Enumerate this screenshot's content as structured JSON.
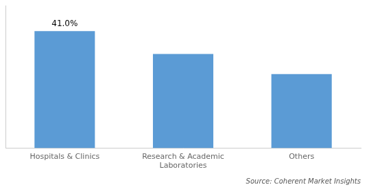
{
  "chart_data": {
    "type": "bar",
    "categories": [
      "Hospitals & Clinics",
      "Research & Academic\nLaboratories",
      "Others"
    ],
    "values": [
      41.0,
      33.0,
      26.0
    ],
    "color": "#5b9bd5",
    "data_labels": true,
    "value_labels": [
      "41.0%",
      null,
      null
    ],
    "ylim": [
      0,
      50
    ],
    "tick_labels": "x",
    "grid": false,
    "annotations": [
      "Source: Coherent Market Insights"
    ]
  }
}
